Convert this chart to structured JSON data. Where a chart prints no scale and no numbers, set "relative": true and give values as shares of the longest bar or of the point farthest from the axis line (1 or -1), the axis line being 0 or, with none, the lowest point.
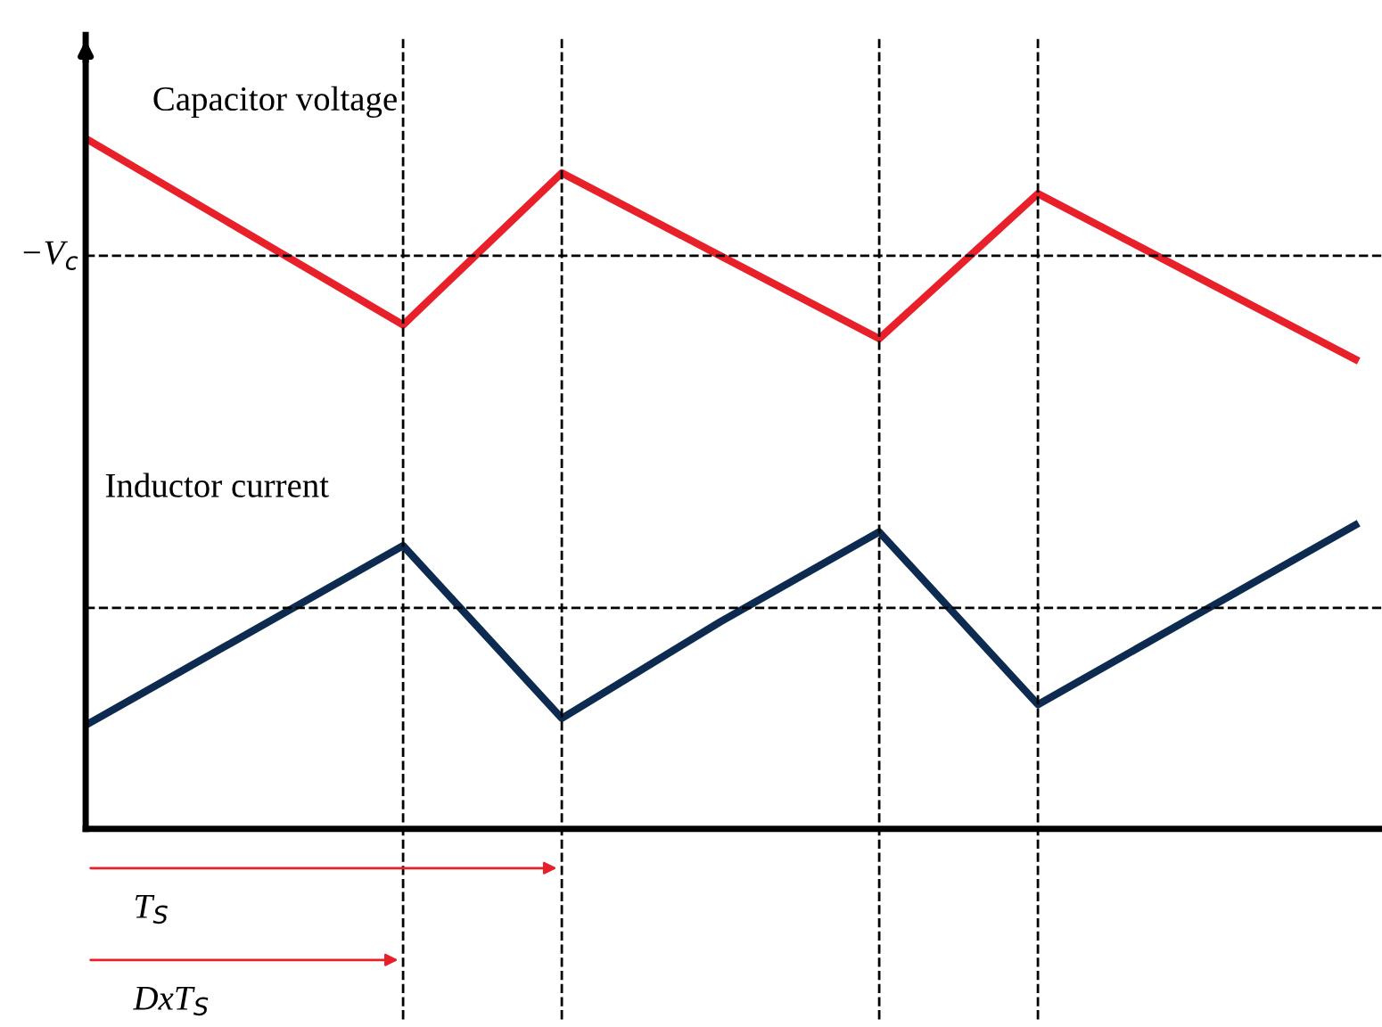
{
  "chart_data": {
    "type": "line",
    "relative": true,
    "categories": [
      null,
      null,
      null,
      null,
      null,
      null,
      null,
      null,
      null
    ],
    "marker": "none",
    "line_style": "solid",
    "grid": "x",
    "series": [
      {
        "name": "Capacitor voltage",
        "color": "#e8202a",
        "values": [
          1,
          0.865,
          0.73,
          0.95,
          0.83,
          0.71,
          0.92,
          0.8,
          0.68
        ]
      },
      {
        "name": "Inductor current",
        "color": "#0d2b50",
        "values": [
          0.15,
          0.28,
          0.41,
          0.16,
          0.3,
          0.43,
          0.18,
          0.31,
          0.44
        ]
      }
    ],
    "ref_lines": [
      {
        "axis": "y",
        "value": 0.83,
        "label": "−V$_{c}$",
        "color": "#000000",
        "line_style": "dashed"
      },
      {
        "axis": "y",
        "value": 0.32,
        "label": null,
        "color": "#000000",
        "line_style": "dashed"
      }
    ],
    "annotations": [
      "T$_{S}$",
      "DxT$_{S}$"
    ]
  }
}
